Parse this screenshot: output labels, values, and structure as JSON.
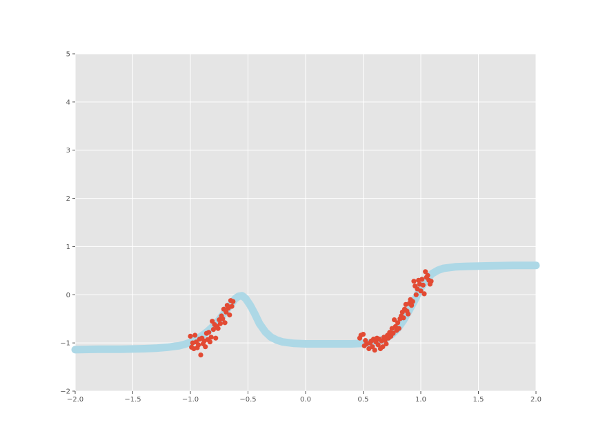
{
  "chart_data": {
    "type": "scatter",
    "xlim": [
      -2.0,
      2.0
    ],
    "ylim": [
      -2,
      5
    ],
    "grid": true,
    "style": "ggplot",
    "colors": {
      "background": "#e5e5e5",
      "grid": "#ffffff",
      "points": "#e24a33",
      "curve": "#add8e6"
    },
    "x_ticks": [
      -2.0,
      -1.5,
      -1.0,
      -0.5,
      0.0,
      0.5,
      1.0,
      1.5,
      2.0
    ],
    "x_tick_labels": [
      "−2.0",
      "−1.5",
      "−1.0",
      "−0.5",
      "0.0",
      "0.5",
      "1.0",
      "1.5",
      "2.0"
    ],
    "y_ticks": [
      -2,
      -1,
      0,
      1,
      2,
      3,
      4,
      5
    ],
    "y_tick_labels": [
      "−2",
      "−1",
      "0",
      "1",
      "2",
      "3",
      "4",
      "5"
    ],
    "series": [
      {
        "kind": "scatter",
        "points": [
          [
            -1.0,
            -0.86
          ],
          [
            -0.99,
            -1.09
          ],
          [
            -0.98,
            -1.0
          ],
          [
            -0.97,
            -1.12
          ],
          [
            -0.96,
            -0.84
          ],
          [
            -0.95,
            -0.98
          ],
          [
            -0.94,
            -1.1
          ],
          [
            -0.93,
            -1.04
          ],
          [
            -0.92,
            -0.92
          ],
          [
            -0.91,
            -1.25
          ],
          [
            -0.9,
            -0.9
          ],
          [
            -0.89,
            -1.02
          ],
          [
            -0.88,
            -0.96
          ],
          [
            -0.87,
            -1.08
          ],
          [
            -0.86,
            -0.8
          ],
          [
            -0.85,
            -0.93
          ],
          [
            -0.84,
            -0.78
          ],
          [
            -0.83,
            -0.98
          ],
          [
            -0.82,
            -0.88
          ],
          [
            -0.81,
            -0.55
          ],
          [
            -0.8,
            -0.72
          ],
          [
            -0.79,
            -0.62
          ],
          [
            -0.78,
            -0.9
          ],
          [
            -0.77,
            -0.66
          ],
          [
            -0.76,
            -0.7
          ],
          [
            -0.75,
            -0.52
          ],
          [
            -0.74,
            -0.6
          ],
          [
            -0.73,
            -0.44
          ],
          [
            -0.72,
            -0.5
          ],
          [
            -0.71,
            -0.3
          ],
          [
            -0.7,
            -0.58
          ],
          [
            -0.69,
            -0.36
          ],
          [
            -0.68,
            -0.22
          ],
          [
            -0.67,
            -0.28
          ],
          [
            -0.66,
            -0.42
          ],
          [
            -0.65,
            -0.12
          ],
          [
            -0.64,
            -0.24
          ],
          [
            -0.63,
            -0.14
          ],
          [
            0.47,
            -0.9
          ],
          [
            0.48,
            -0.84
          ],
          [
            0.5,
            -0.82
          ],
          [
            0.51,
            -1.06
          ],
          [
            0.52,
            -0.95
          ],
          [
            0.53,
            -1.02
          ],
          [
            0.55,
            -1.12
          ],
          [
            0.56,
            -1.0
          ],
          [
            0.57,
            -0.96
          ],
          [
            0.58,
            -1.08
          ],
          [
            0.59,
            -0.92
          ],
          [
            0.6,
            -1.15
          ],
          [
            0.61,
            -0.98
          ],
          [
            0.62,
            -0.9
          ],
          [
            0.63,
            -1.04
          ],
          [
            0.64,
            -0.92
          ],
          [
            0.65,
            -1.12
          ],
          [
            0.66,
            -0.96
          ],
          [
            0.67,
            -1.08
          ],
          [
            0.68,
            -0.88
          ],
          [
            0.69,
            -0.94
          ],
          [
            0.7,
            -1.02
          ],
          [
            0.71,
            -0.84
          ],
          [
            0.72,
            -0.9
          ],
          [
            0.73,
            -0.78
          ],
          [
            0.74,
            -0.86
          ],
          [
            0.75,
            -0.7
          ],
          [
            0.76,
            -0.8
          ],
          [
            0.77,
            -0.52
          ],
          [
            0.78,
            -0.66
          ],
          [
            0.79,
            -0.74
          ],
          [
            0.8,
            -0.58
          ],
          [
            0.81,
            -0.7
          ],
          [
            0.82,
            -0.5
          ],
          [
            0.83,
            -0.44
          ],
          [
            0.84,
            -0.36
          ],
          [
            0.85,
            -0.48
          ],
          [
            0.86,
            -0.3
          ],
          [
            0.87,
            -0.2
          ],
          [
            0.88,
            -0.34
          ],
          [
            0.89,
            -0.4
          ],
          [
            0.9,
            -0.18
          ],
          [
            0.91,
            -0.1
          ],
          [
            0.92,
            -0.22
          ],
          [
            0.93,
            -0.14
          ],
          [
            0.94,
            0.28
          ],
          [
            0.95,
            0.18
          ],
          [
            0.96,
            0.0
          ],
          [
            0.97,
            0.12
          ],
          [
            0.98,
            0.3
          ],
          [
            0.99,
            0.22
          ],
          [
            1.0,
            0.08
          ],
          [
            1.01,
            0.32
          ],
          [
            1.02,
            0.2
          ],
          [
            1.03,
            0.02
          ],
          [
            1.04,
            0.48
          ],
          [
            1.05,
            0.36
          ],
          [
            1.06,
            0.4
          ],
          [
            1.07,
            0.3
          ],
          [
            1.08,
            0.22
          ],
          [
            1.09,
            0.28
          ]
        ]
      },
      {
        "kind": "line",
        "points": [
          [
            -2.0,
            -1.14
          ],
          [
            -1.8,
            -1.13
          ],
          [
            -1.6,
            -1.13
          ],
          [
            -1.4,
            -1.12
          ],
          [
            -1.3,
            -1.11
          ],
          [
            -1.2,
            -1.09
          ],
          [
            -1.1,
            -1.06
          ],
          [
            -1.05,
            -1.03
          ],
          [
            -1.0,
            -0.99
          ],
          [
            -0.95,
            -0.93
          ],
          [
            -0.9,
            -0.85
          ],
          [
            -0.85,
            -0.76
          ],
          [
            -0.8,
            -0.65
          ],
          [
            -0.75,
            -0.52
          ],
          [
            -0.7,
            -0.36
          ],
          [
            -0.65,
            -0.2
          ],
          [
            -0.61,
            -0.08
          ],
          [
            -0.58,
            -0.03
          ],
          [
            -0.55,
            -0.02
          ],
          [
            -0.52,
            -0.08
          ],
          [
            -0.48,
            -0.22
          ],
          [
            -0.44,
            -0.4
          ],
          [
            -0.4,
            -0.6
          ],
          [
            -0.35,
            -0.77
          ],
          [
            -0.3,
            -0.88
          ],
          [
            -0.25,
            -0.94
          ],
          [
            -0.2,
            -0.98
          ],
          [
            -0.1,
            -1.01
          ],
          [
            0.0,
            -1.02
          ],
          [
            0.2,
            -1.02
          ],
          [
            0.4,
            -1.02
          ],
          [
            0.5,
            -1.01
          ],
          [
            0.55,
            -1.0
          ],
          [
            0.6,
            -0.98
          ],
          [
            0.65,
            -0.95
          ],
          [
            0.7,
            -0.9
          ],
          [
            0.75,
            -0.82
          ],
          [
            0.8,
            -0.7
          ],
          [
            0.85,
            -0.53
          ],
          [
            0.9,
            -0.32
          ],
          [
            0.95,
            -0.1
          ],
          [
            1.0,
            0.14
          ],
          [
            1.05,
            0.32
          ],
          [
            1.1,
            0.44
          ],
          [
            1.15,
            0.51
          ],
          [
            1.2,
            0.55
          ],
          [
            1.3,
            0.58
          ],
          [
            1.4,
            0.59
          ],
          [
            1.6,
            0.6
          ],
          [
            1.8,
            0.61
          ],
          [
            2.0,
            0.61
          ]
        ]
      }
    ]
  }
}
